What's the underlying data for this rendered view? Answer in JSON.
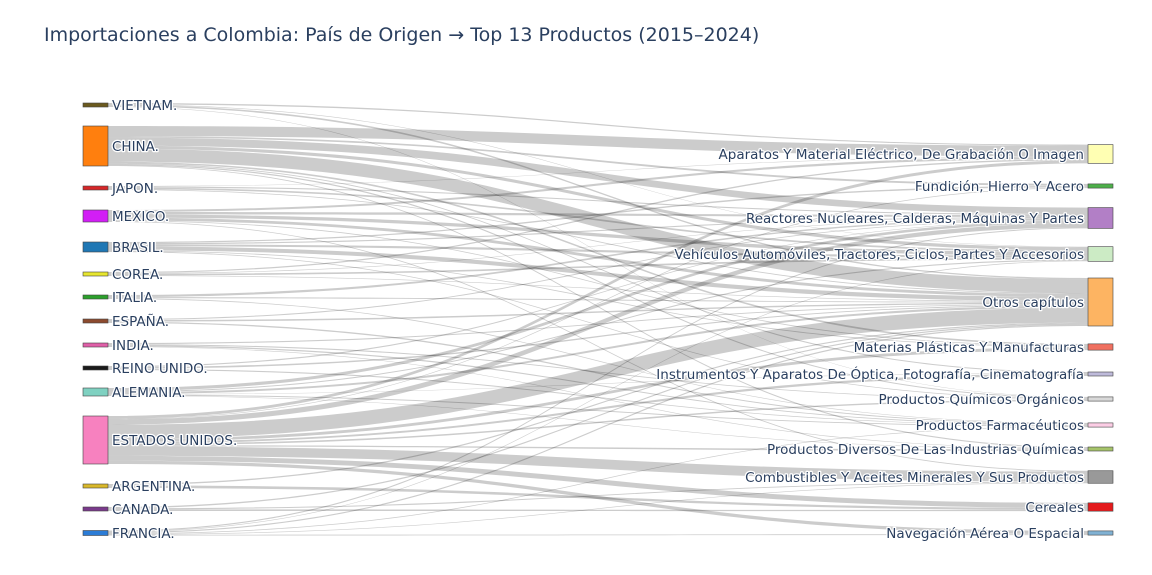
{
  "chart_data": {
    "type": "sankey",
    "title": "Importaciones a Colombia: País de Origen → Top 13 Productos (2015–2024)",
    "sources": [
      {
        "label": "VIETNAM.",
        "color": "#6b5a1e",
        "value": 1.5
      },
      {
        "label": "CHINA.",
        "color": "#ff7f0e",
        "value": 20
      },
      {
        "label": "JAPON.",
        "color": "#d62728",
        "value": 2
      },
      {
        "label": "MEXICO.",
        "color": "#d21ef5",
        "value": 6
      },
      {
        "label": "BRASIL.",
        "color": "#1f77b4",
        "value": 5
      },
      {
        "label": "COREA.",
        "color": "#e7e62e",
        "value": 2
      },
      {
        "label": "ITALIA.",
        "color": "#2ca02c",
        "value": 1.5
      },
      {
        "label": "ESPAÑA.",
        "color": "#8c4a2e",
        "value": 1.5
      },
      {
        "label": "INDIA.",
        "color": "#e05fa8",
        "value": 1.5
      },
      {
        "label": "REINO UNIDO.",
        "color": "#1a1a1a",
        "value": 1
      },
      {
        "label": "ALEMANIA.",
        "color": "#7fd1c1",
        "value": 4
      },
      {
        "label": "ESTADOS UNIDOS.",
        "color": "#f781bf",
        "value": 24
      },
      {
        "label": "ARGENTINA.",
        "color": "#d9b82a",
        "value": 1.5
      },
      {
        "label": "CANADA.",
        "color": "#7a3a8c",
        "value": 1.5
      },
      {
        "label": "FRANCIA.",
        "color": "#2b7cd6",
        "value": 2.5
      }
    ],
    "targets": [
      {
        "label": "Aparatos Y Material Eléctrico, De Grabación O Imagen",
        "color": "#ffffb3",
        "value": 9
      },
      {
        "label": "Fundición, Hierro Y Acero",
        "color": "#4daf4a",
        "value": 2
      },
      {
        "label": "Reactores Nucleares, Calderas, Máquinas Y Partes",
        "color": "#b27fc6",
        "value": 10
      },
      {
        "label": "Vehículos Automóviles, Tractores, Ciclos, Partes Y Accesorios",
        "color": "#ccebc5",
        "value": 7
      },
      {
        "label": "Otros capítulos",
        "color": "#fdb462",
        "value": 23
      },
      {
        "label": "Materias Plásticas Y Manufacturas",
        "color": "#f07060",
        "value": 3
      },
      {
        "label": "Instrumentos Y Aparatos De Óptica, Fotografía, Cinematografía",
        "color": "#bebada",
        "value": 1.5
      },
      {
        "label": "Productos Químicos Orgánicos",
        "color": "#d9d9d9",
        "value": 2
      },
      {
        "label": "Productos Farmacéuticos",
        "color": "#fccde5",
        "value": 2
      },
      {
        "label": "Productos Diversos De Las Industrias Químicas",
        "color": "#a6c46a",
        "value": 1.5
      },
      {
        "label": "Combustibles Y Aceites Minerales Y Sus Productos",
        "color": "#999999",
        "value": 6
      },
      {
        "label": "Cereales",
        "color": "#e41a1c",
        "value": 4
      },
      {
        "label": "Navegación Aérea O Espacial",
        "color": "#80b1d3",
        "value": 2
      }
    ],
    "links": [
      {
        "source": 0,
        "target": 0,
        "value": 0.5
      },
      {
        "source": 0,
        "target": 4,
        "value": 0.6
      },
      {
        "source": 0,
        "target": 3,
        "value": 0.2
      },
      {
        "source": 0,
        "target": 7,
        "value": 0.2
      },
      {
        "source": 1,
        "target": 0,
        "value": 5
      },
      {
        "source": 1,
        "target": 2,
        "value": 4
      },
      {
        "source": 1,
        "target": 4,
        "value": 6.5
      },
      {
        "source": 1,
        "target": 1,
        "value": 0.8
      },
      {
        "source": 1,
        "target": 3,
        "value": 1.5
      },
      {
        "source": 1,
        "target": 5,
        "value": 0.8
      },
      {
        "source": 1,
        "target": 7,
        "value": 0.6
      },
      {
        "source": 1,
        "target": 6,
        "value": 0.4
      },
      {
        "source": 1,
        "target": 9,
        "value": 0.4
      },
      {
        "source": 2,
        "target": 3,
        "value": 0.8
      },
      {
        "source": 2,
        "target": 2,
        "value": 0.6
      },
      {
        "source": 2,
        "target": 4,
        "value": 0.4
      },
      {
        "source": 2,
        "target": 0,
        "value": 0.2
      },
      {
        "source": 3,
        "target": 3,
        "value": 1.6
      },
      {
        "source": 3,
        "target": 0,
        "value": 1
      },
      {
        "source": 3,
        "target": 2,
        "value": 1.2
      },
      {
        "source": 3,
        "target": 4,
        "value": 1.4
      },
      {
        "source": 3,
        "target": 5,
        "value": 0.4
      },
      {
        "source": 3,
        "target": 10,
        "value": 0.4
      },
      {
        "source": 4,
        "target": 4,
        "value": 2
      },
      {
        "source": 4,
        "target": 3,
        "value": 1
      },
      {
        "source": 4,
        "target": 2,
        "value": 0.6
      },
      {
        "source": 4,
        "target": 1,
        "value": 0.6
      },
      {
        "source": 4,
        "target": 5,
        "value": 0.4
      },
      {
        "source": 4,
        "target": 7,
        "value": 0.4
      },
      {
        "source": 5,
        "target": 3,
        "value": 0.8
      },
      {
        "source": 5,
        "target": 0,
        "value": 0.6
      },
      {
        "source": 5,
        "target": 2,
        "value": 0.3
      },
      {
        "source": 5,
        "target": 4,
        "value": 0.3
      },
      {
        "source": 6,
        "target": 2,
        "value": 0.8
      },
      {
        "source": 6,
        "target": 4,
        "value": 0.4
      },
      {
        "source": 6,
        "target": 8,
        "value": 0.3
      },
      {
        "source": 7,
        "target": 4,
        "value": 0.6
      },
      {
        "source": 7,
        "target": 2,
        "value": 0.4
      },
      {
        "source": 7,
        "target": 8,
        "value": 0.5
      },
      {
        "source": 8,
        "target": 4,
        "value": 0.4
      },
      {
        "source": 8,
        "target": 7,
        "value": 0.4
      },
      {
        "source": 8,
        "target": 8,
        "value": 0.5
      },
      {
        "source": 8,
        "target": 9,
        "value": 0.2
      },
      {
        "source": 9,
        "target": 4,
        "value": 0.4
      },
      {
        "source": 9,
        "target": 2,
        "value": 0.3
      },
      {
        "source": 9,
        "target": 8,
        "value": 0.3
      },
      {
        "source": 10,
        "target": 2,
        "value": 1.6
      },
      {
        "source": 10,
        "target": 4,
        "value": 1
      },
      {
        "source": 10,
        "target": 8,
        "value": 0.5
      },
      {
        "source": 10,
        "target": 3,
        "value": 0.5
      },
      {
        "source": 10,
        "target": 9,
        "value": 0.2
      },
      {
        "source": 10,
        "target": 6,
        "value": 0.2
      },
      {
        "source": 11,
        "target": 4,
        "value": 7
      },
      {
        "source": 11,
        "target": 10,
        "value": 4.6
      },
      {
        "source": 11,
        "target": 2,
        "value": 2.6
      },
      {
        "source": 11,
        "target": 11,
        "value": 2.4
      },
      {
        "source": 11,
        "target": 0,
        "value": 1.4
      },
      {
        "source": 11,
        "target": 5,
        "value": 1.4
      },
      {
        "source": 11,
        "target": 6,
        "value": 0.9
      },
      {
        "source": 11,
        "target": 7,
        "value": 0.8
      },
      {
        "source": 11,
        "target": 12,
        "value": 1.6
      },
      {
        "source": 11,
        "target": 1,
        "value": 0.3
      },
      {
        "source": 11,
        "target": 9,
        "value": 0.6
      },
      {
        "source": 12,
        "target": 11,
        "value": 1
      },
      {
        "source": 12,
        "target": 4,
        "value": 0.5
      },
      {
        "source": 13,
        "target": 11,
        "value": 0.6
      },
      {
        "source": 13,
        "target": 4,
        "value": 0.5
      },
      {
        "source": 13,
        "target": 10,
        "value": 0.4
      },
      {
        "source": 14,
        "target": 2,
        "value": 0.6
      },
      {
        "source": 14,
        "target": 12,
        "value": 0.4
      },
      {
        "source": 14,
        "target": 4,
        "value": 0.6
      },
      {
        "source": 14,
        "target": 8,
        "value": 0.4
      },
      {
        "source": 14,
        "target": 3,
        "value": 0.3
      },
      {
        "source": 14,
        "target": 10,
        "value": 0.3
      }
    ]
  }
}
